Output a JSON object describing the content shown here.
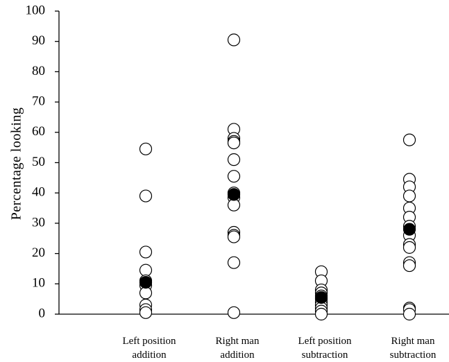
{
  "chart_data": {
    "type": "scatter",
    "ylabel": "Percentage  looking",
    "ylim": [
      0,
      100
    ],
    "yticks": [
      0,
      10,
      20,
      30,
      40,
      50,
      60,
      70,
      80,
      90,
      100
    ],
    "categories": [
      [
        "Left position",
        "addition"
      ],
      [
        "Right man",
        "addition"
      ],
      [
        "Left position",
        "subtraction"
      ],
      [
        "Right man",
        "subtraction"
      ]
    ],
    "series": [
      {
        "marker": "open-circle",
        "points": [
          [
            54.5,
            39,
            20.5,
            14.5,
            11,
            9.5,
            7,
            3,
            1.5,
            0.5
          ],
          [
            90.5,
            61,
            58,
            57,
            56.5,
            51,
            45.5,
            40,
            38.5,
            36,
            27,
            26,
            25.5,
            17,
            0.5
          ],
          [
            14,
            11,
            8,
            7,
            6,
            5,
            4,
            3,
            2,
            1,
            0
          ],
          [
            57.5,
            44.5,
            42,
            39,
            35,
            32,
            29,
            26,
            23,
            22,
            17,
            16,
            2,
            1.5,
            0
          ]
        ]
      },
      {
        "marker": "filled-circle",
        "points": [
          [
            10.5
          ],
          [
            39.5
          ],
          [
            5.5
          ],
          [
            28
          ]
        ]
      }
    ],
    "colors": {
      "fill_open": "#ffffff",
      "fill_mean": "#000000",
      "stroke": "#000000"
    },
    "grid": false
  }
}
